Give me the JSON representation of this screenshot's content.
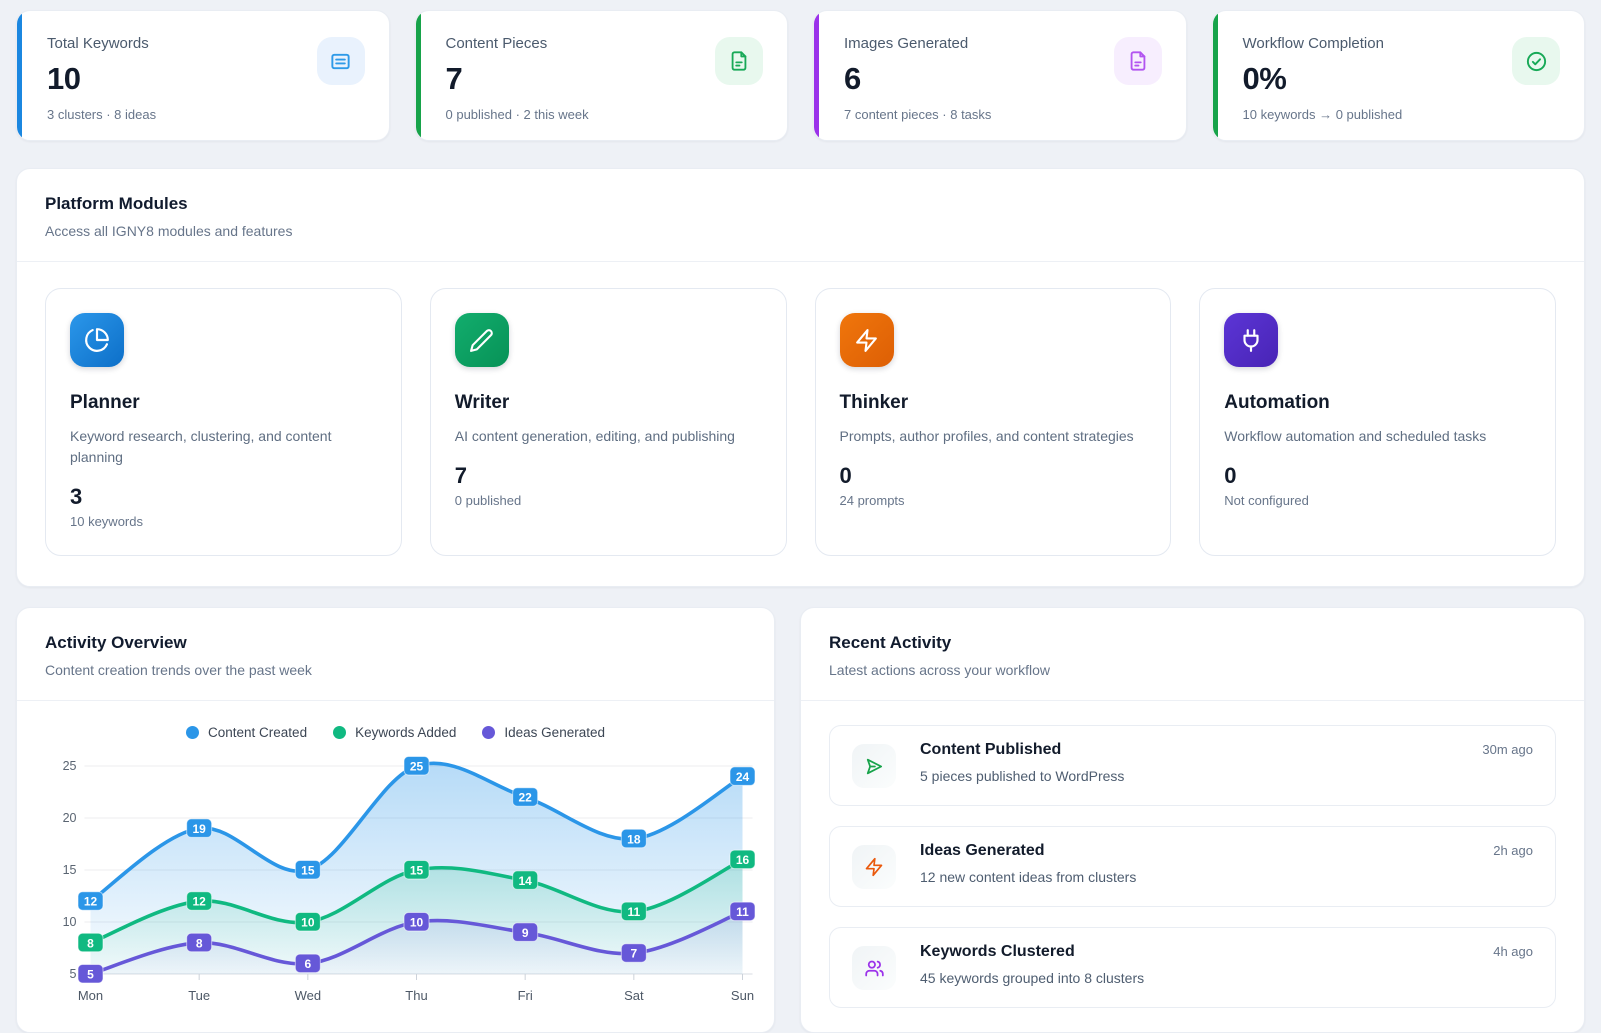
{
  "stats": [
    {
      "label": "Total Keywords",
      "value": "10",
      "sub": "3 clusters · 8 ideas",
      "accent": "#1b87e0",
      "icon": "list-icon",
      "icon_bg": "#e9f2fd",
      "icon_color": "#2e9ae8"
    },
    {
      "label": "Content Pieces",
      "value": "7",
      "sub": "0 published · 2 this week",
      "accent": "#17a34a",
      "icon": "file-text-icon",
      "icon_bg": "#e8f8ee",
      "icon_color": "#18a957"
    },
    {
      "label": "Images Generated",
      "value": "6",
      "sub": "7 content pieces · 8 tasks",
      "accent": "#9b32ea",
      "icon": "file-text-icon",
      "icon_bg": "#f7eefe",
      "icon_color": "#b254f0"
    },
    {
      "label": "Workflow Completion",
      "value": "0%",
      "sub": "10 keywords → 0 published",
      "accent": "#17a34a",
      "icon": "check-circle-icon",
      "icon_bg": "#e8f8ee",
      "icon_color": "#18a957"
    }
  ],
  "modules_section": {
    "title": "Platform Modules",
    "subtitle": "Access all IGNY8 modules and features",
    "modules": [
      {
        "name": "Planner",
        "description": "Keyword research, clustering, and content planning",
        "stat_value": "3",
        "stat_label": "10 keywords",
        "icon": "pie-chart-icon",
        "gradient": "linear-gradient(135deg,#2b97ea 0%,#0d6fc8 100%)"
      },
      {
        "name": "Writer",
        "description": "AI content generation, editing, and publishing",
        "stat_value": "7",
        "stat_label": "0 published",
        "icon": "pencil-icon",
        "gradient": "linear-gradient(135deg,#12ad6d 0%,#079257 100%)"
      },
      {
        "name": "Thinker",
        "description": "Prompts, author profiles, and content strategies",
        "stat_value": "0",
        "stat_label": "24 prompts",
        "icon": "zap-icon",
        "gradient": "linear-gradient(135deg,#f0760c 0%,#dd5f05 100%)"
      },
      {
        "name": "Automation",
        "description": "Workflow automation and scheduled tasks",
        "stat_value": "0",
        "stat_label": "Not configured",
        "icon": "plug-icon",
        "gradient": "linear-gradient(135deg,#5c35d6 0%,#4824b5 100%)"
      }
    ]
  },
  "activity_section": {
    "title": "Activity Overview",
    "subtitle": "Content creation trends over the past week"
  },
  "recent_section": {
    "title": "Recent Activity",
    "subtitle": "Latest actions across your workflow",
    "items": [
      {
        "title": "Content Published",
        "description": "5 pieces published to WordPress",
        "time": "30m ago",
        "icon": "send-icon",
        "icon_color": "#17a34a",
        "icon_bg": "linear-gradient(135deg,#f0f4f6 0%,#fbfdfd 100%)"
      },
      {
        "title": "Ideas Generated",
        "description": "12 new content ideas from clusters",
        "time": "2h ago",
        "icon": "zap-icon",
        "icon_color": "#ea590c",
        "icon_bg": "linear-gradient(135deg,#f0f4f6 0%,#fbfdfd 100%)"
      },
      {
        "title": "Keywords Clustered",
        "description": "45 keywords grouped into 8 clusters",
        "time": "4h ago",
        "icon": "users-icon",
        "icon_color": "#9b32ea",
        "icon_bg": "linear-gradient(135deg,#f0f4f6 0%,#fbfdfd 100%)"
      }
    ]
  },
  "chart_data": {
    "type": "area",
    "title": "Activity Overview",
    "x": [
      "Mon",
      "Tue",
      "Wed",
      "Thu",
      "Fri",
      "Sat",
      "Sun"
    ],
    "series": [
      {
        "name": "Content Created",
        "color": "#2b96e8",
        "values": [
          12,
          19,
          15,
          25,
          22,
          18,
          24
        ]
      },
      {
        "name": "Keywords Added",
        "color": "#10b981",
        "values": [
          8,
          12,
          10,
          15,
          14,
          11,
          16
        ]
      },
      {
        "name": "Ideas Generated",
        "color": "#6658d8",
        "values": [
          5,
          8,
          6,
          10,
          9,
          7,
          11
        ]
      }
    ],
    "ylim": [
      5,
      25
    ],
    "yticks": [
      5,
      10,
      15,
      20,
      25
    ],
    "grid": true,
    "legend_position": "top",
    "data_labels": true
  }
}
